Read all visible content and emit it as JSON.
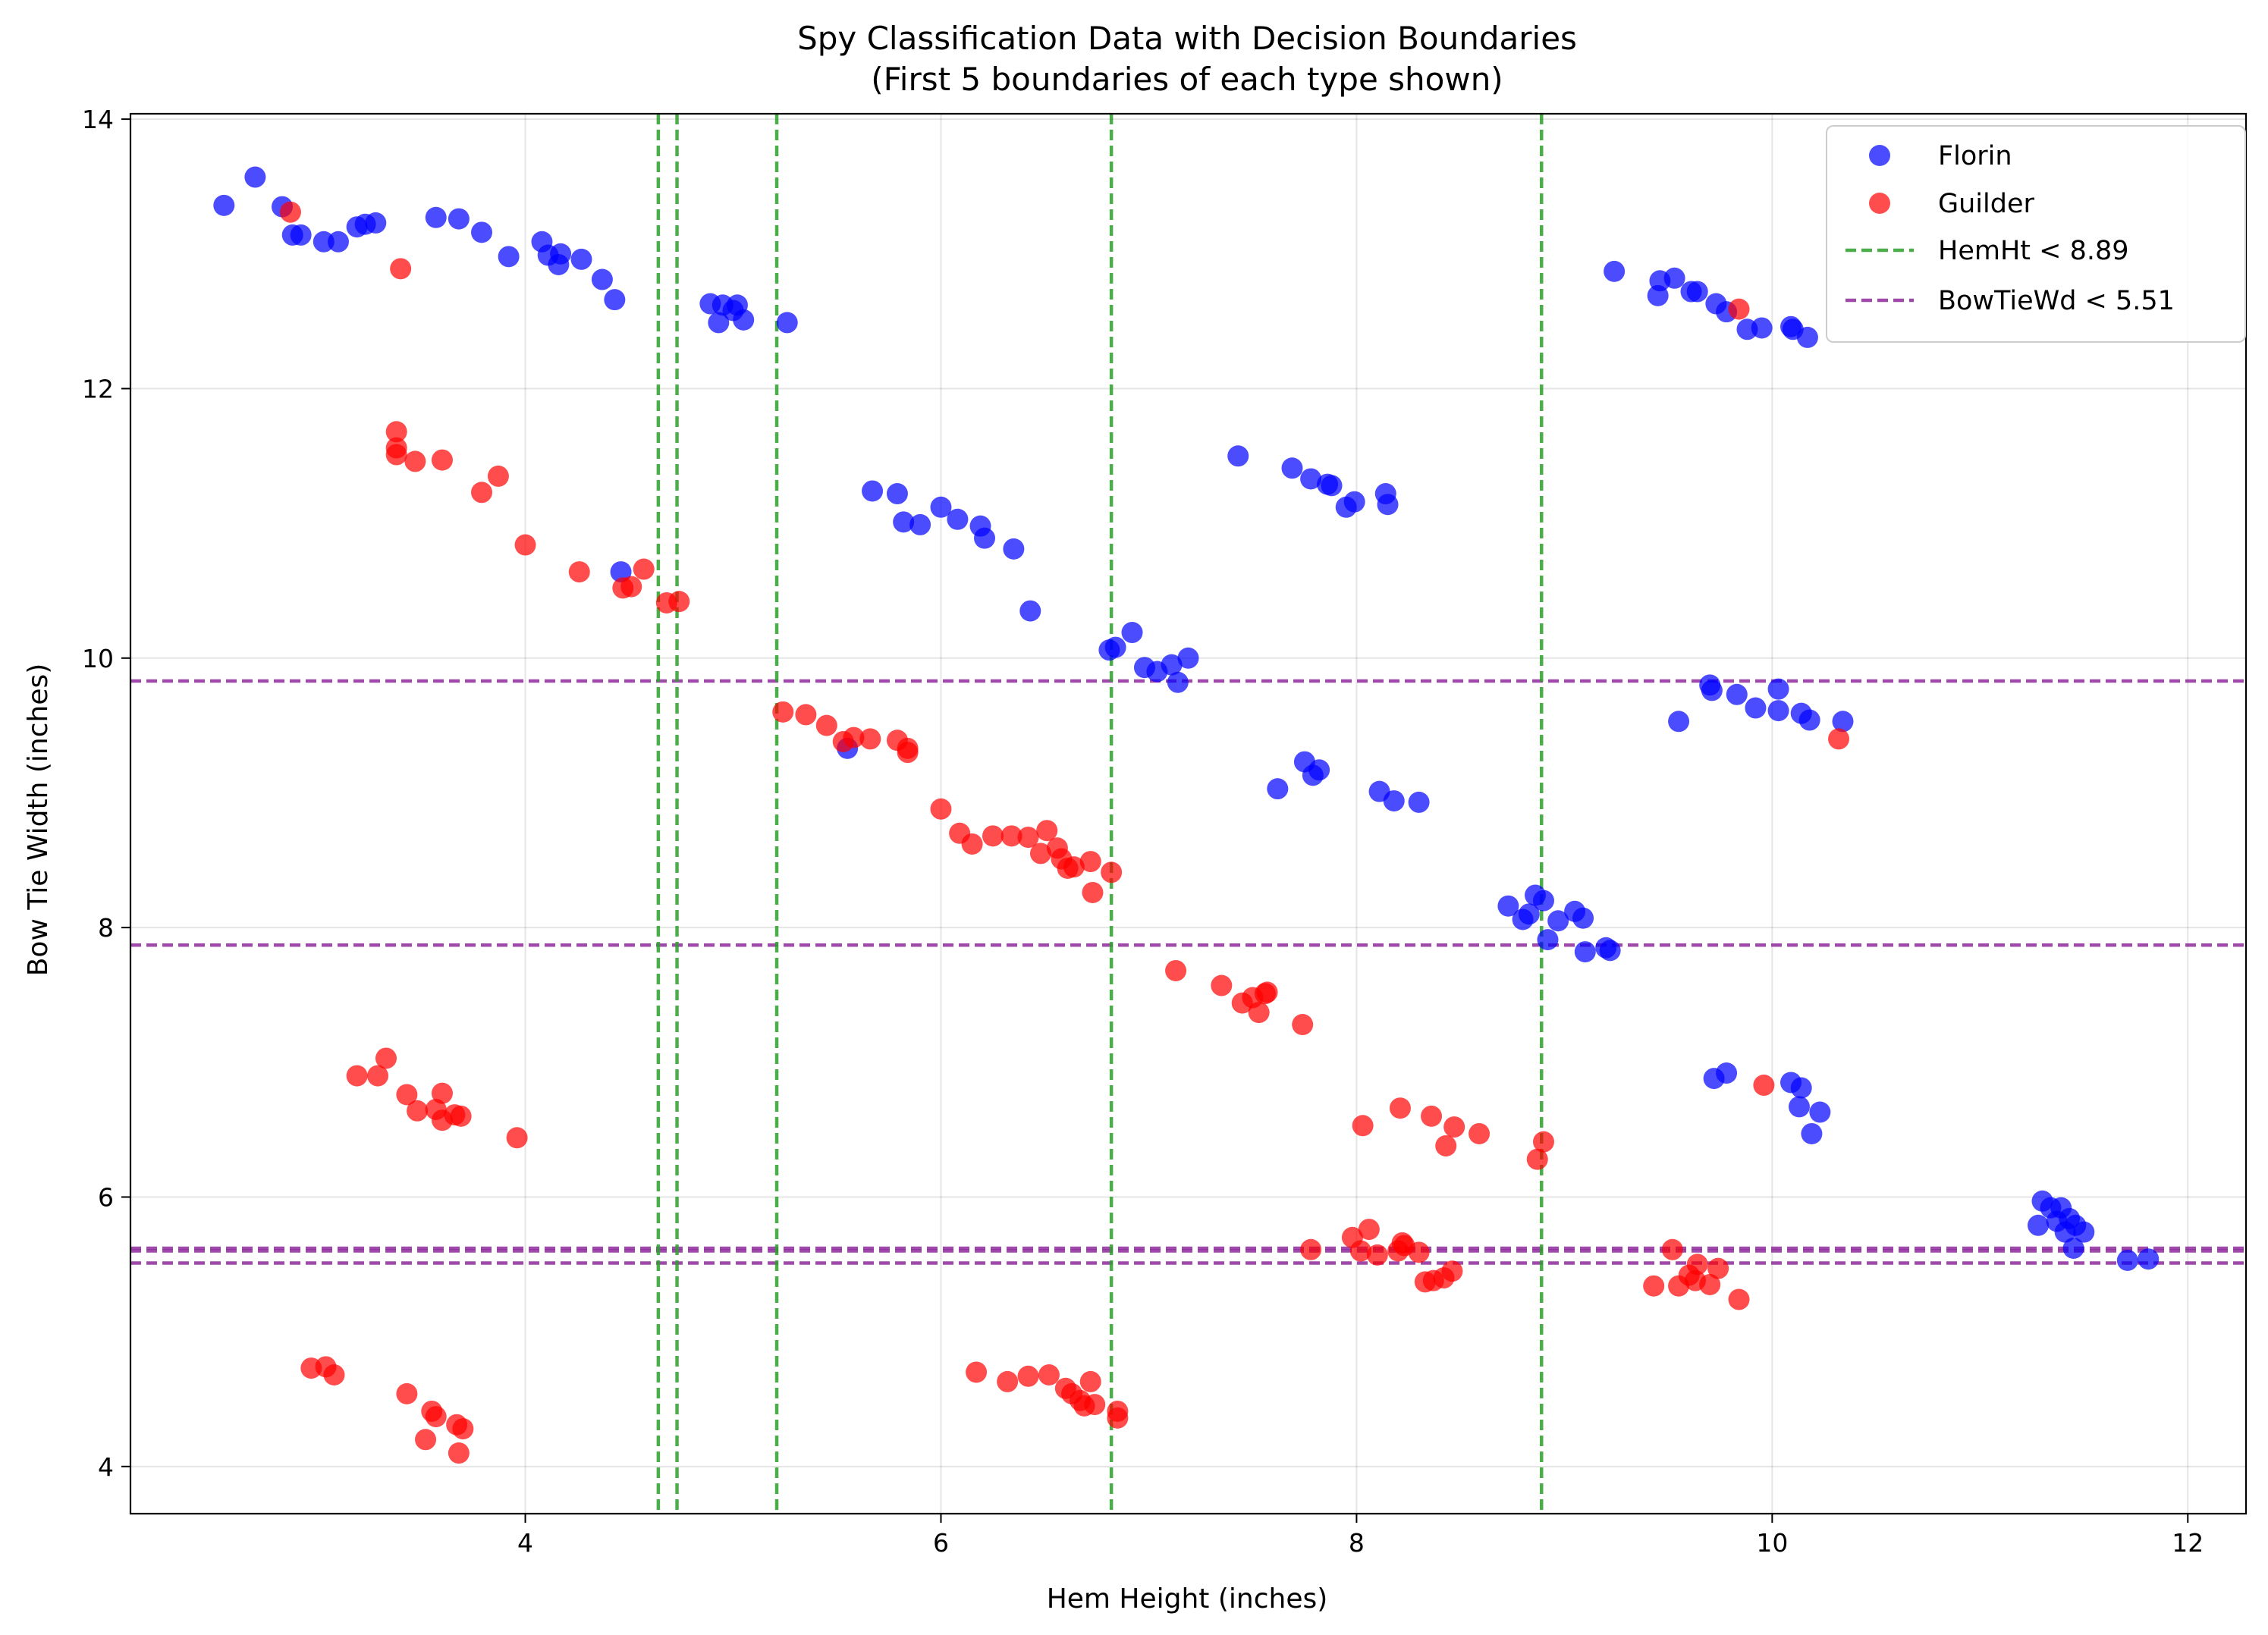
{
  "chart_data": {
    "type": "scatter",
    "title": "Spy Classification Data with Decision Boundaries",
    "subtitle": "(First 5 boundaries of each type shown)",
    "xlabel": "Hem Height (inches)",
    "ylabel": "Bow Tie Width (inches)",
    "xlim": [
      2.1,
      12.28
    ],
    "ylim": [
      3.65,
      14.04
    ],
    "x_ticks": [
      4,
      6,
      8,
      10,
      12
    ],
    "y_ticks": [
      4,
      6,
      8,
      10,
      12,
      14
    ],
    "grid": true,
    "legend_position": "top-right",
    "series": [
      {
        "name": "Florin",
        "color": "#0000ff",
        "points": [
          [
            2.55,
            13.36
          ],
          [
            2.7,
            13.57
          ],
          [
            2.83,
            13.35
          ],
          [
            2.88,
            13.14
          ],
          [
            2.92,
            13.14
          ],
          [
            3.03,
            13.09
          ],
          [
            3.1,
            13.09
          ],
          [
            3.19,
            13.2
          ],
          [
            3.23,
            13.22
          ],
          [
            3.28,
            13.23
          ],
          [
            3.57,
            13.27
          ],
          [
            3.68,
            13.26
          ],
          [
            3.79,
            13.16
          ],
          [
            3.92,
            12.98
          ],
          [
            4.08,
            13.09
          ],
          [
            4.11,
            12.99
          ],
          [
            4.16,
            12.92
          ],
          [
            4.17,
            13.0
          ],
          [
            4.27,
            12.96
          ],
          [
            4.37,
            12.81
          ],
          [
            4.43,
            12.66
          ],
          [
            4.89,
            12.63
          ],
          [
            4.93,
            12.49
          ],
          [
            4.95,
            12.62
          ],
          [
            5.0,
            12.58
          ],
          [
            5.02,
            12.62
          ],
          [
            5.05,
            12.51
          ],
          [
            5.26,
            12.49
          ],
          [
            4.46,
            10.64
          ],
          [
            5.55,
            9.33
          ],
          [
            5.67,
            11.24
          ],
          [
            5.79,
            11.22
          ],
          [
            5.82,
            11.01
          ],
          [
            5.9,
            10.99
          ],
          [
            6.0,
            11.12
          ],
          [
            6.08,
            11.03
          ],
          [
            6.19,
            10.98
          ],
          [
            6.21,
            10.89
          ],
          [
            6.35,
            10.81
          ],
          [
            6.43,
            10.35
          ],
          [
            6.81,
            10.06
          ],
          [
            6.84,
            10.08
          ],
          [
            6.92,
            10.19
          ],
          [
            6.98,
            9.93
          ],
          [
            7.04,
            9.9
          ],
          [
            7.11,
            9.95
          ],
          [
            7.14,
            9.82
          ],
          [
            7.19,
            10.0
          ],
          [
            7.43,
            11.5
          ],
          [
            7.62,
            9.03
          ],
          [
            7.69,
            11.41
          ],
          [
            7.75,
            9.23
          ],
          [
            7.78,
            11.33
          ],
          [
            7.79,
            9.13
          ],
          [
            7.82,
            9.17
          ],
          [
            7.86,
            11.29
          ],
          [
            7.88,
            11.28
          ],
          [
            7.95,
            11.12
          ],
          [
            7.99,
            11.16
          ],
          [
            8.11,
            9.01
          ],
          [
            8.14,
            11.22
          ],
          [
            8.15,
            11.14
          ],
          [
            8.18,
            8.94
          ],
          [
            8.3,
            8.93
          ],
          [
            8.73,
            8.16
          ],
          [
            8.8,
            8.06
          ],
          [
            8.83,
            8.1
          ],
          [
            8.86,
            8.24
          ],
          [
            8.9,
            8.2
          ],
          [
            8.92,
            7.91
          ],
          [
            8.97,
            8.05
          ],
          [
            9.05,
            8.12
          ],
          [
            9.09,
            8.07
          ],
          [
            9.1,
            7.82
          ],
          [
            9.2,
            7.85
          ],
          [
            9.22,
            7.83
          ],
          [
            9.24,
            12.87
          ],
          [
            9.45,
            12.69
          ],
          [
            9.46,
            12.8
          ],
          [
            9.53,
            12.82
          ],
          [
            9.55,
            9.53
          ],
          [
            9.61,
            12.72
          ],
          [
            9.64,
            12.72
          ],
          [
            9.7,
            9.8
          ],
          [
            9.71,
            9.76
          ],
          [
            9.72,
            6.88
          ],
          [
            9.73,
            12.63
          ],
          [
            9.78,
            6.92
          ],
          [
            9.78,
            12.57
          ],
          [
            9.83,
            9.73
          ],
          [
            9.88,
            12.44
          ],
          [
            9.92,
            9.63
          ],
          [
            9.95,
            12.45
          ],
          [
            10.03,
            9.77
          ],
          [
            10.03,
            9.61
          ],
          [
            10.09,
            12.46
          ],
          [
            10.09,
            6.85
          ],
          [
            10.1,
            12.44
          ],
          [
            10.13,
            6.67
          ],
          [
            10.14,
            6.81
          ],
          [
            10.14,
            9.59
          ],
          [
            10.17,
            12.38
          ],
          [
            10.18,
            9.54
          ],
          [
            10.19,
            6.47
          ],
          [
            10.23,
            6.63
          ],
          [
            10.34,
            9.53
          ],
          [
            11.28,
            5.79
          ],
          [
            11.3,
            5.97
          ],
          [
            11.34,
            5.92
          ],
          [
            11.37,
            5.82
          ],
          [
            11.39,
            5.92
          ],
          [
            11.41,
            5.74
          ],
          [
            11.43,
            5.84
          ],
          [
            11.45,
            5.62
          ],
          [
            11.46,
            5.79
          ],
          [
            11.5,
            5.74
          ],
          [
            11.71,
            5.53
          ],
          [
            11.81,
            5.54
          ]
        ]
      },
      {
        "name": "Guilder",
        "color": "#ff0000",
        "points": [
          [
            2.87,
            13.31
          ],
          [
            3.4,
            12.89
          ],
          [
            3.38,
            11.68
          ],
          [
            3.38,
            11.56
          ],
          [
            3.38,
            11.51
          ],
          [
            3.47,
            11.46
          ],
          [
            3.6,
            11.47
          ],
          [
            3.79,
            11.23
          ],
          [
            3.87,
            11.35
          ],
          [
            4.0,
            10.84
          ],
          [
            4.26,
            10.64
          ],
          [
            4.47,
            10.52
          ],
          [
            4.51,
            10.53
          ],
          [
            4.57,
            10.66
          ],
          [
            4.68,
            10.41
          ],
          [
            4.74,
            10.42
          ],
          [
            5.24,
            9.6
          ],
          [
            5.35,
            9.58
          ],
          [
            5.45,
            9.5
          ],
          [
            5.53,
            9.38
          ],
          [
            5.58,
            9.41
          ],
          [
            5.66,
            9.4
          ],
          [
            5.79,
            9.39
          ],
          [
            5.84,
            9.3
          ],
          [
            5.84,
            9.33
          ],
          [
            6.0,
            8.88
          ],
          [
            6.09,
            8.7
          ],
          [
            6.15,
            8.62
          ],
          [
            6.25,
            8.68
          ],
          [
            6.34,
            8.68
          ],
          [
            6.42,
            8.67
          ],
          [
            6.48,
            8.55
          ],
          [
            6.51,
            8.72
          ],
          [
            6.56,
            8.59
          ],
          [
            6.58,
            8.51
          ],
          [
            6.61,
            8.44
          ],
          [
            6.64,
            8.45
          ],
          [
            6.72,
            8.49
          ],
          [
            6.73,
            8.26
          ],
          [
            6.82,
            8.41
          ],
          [
            7.13,
            7.68
          ],
          [
            7.35,
            7.57
          ],
          [
            7.45,
            7.44
          ],
          [
            7.5,
            7.48
          ],
          [
            7.53,
            7.37
          ],
          [
            7.56,
            7.51
          ],
          [
            7.57,
            7.52
          ],
          [
            7.74,
            7.28
          ],
          [
            3.19,
            6.9
          ],
          [
            3.29,
            6.9
          ],
          [
            3.33,
            7.03
          ],
          [
            3.43,
            6.76
          ],
          [
            3.48,
            6.64
          ],
          [
            3.57,
            6.65
          ],
          [
            3.6,
            6.77
          ],
          [
            3.6,
            6.57
          ],
          [
            3.66,
            6.61
          ],
          [
            3.69,
            6.6
          ],
          [
            3.96,
            6.44
          ],
          [
            8.03,
            6.53
          ],
          [
            8.21,
            6.66
          ],
          [
            8.36,
            6.6
          ],
          [
            8.43,
            6.38
          ],
          [
            8.47,
            6.52
          ],
          [
            8.59,
            6.47
          ],
          [
            8.87,
            6.28
          ],
          [
            8.9,
            6.41
          ],
          [
            9.96,
            6.83
          ],
          [
            7.78,
            5.61
          ],
          [
            7.98,
            5.7
          ],
          [
            8.02,
            5.6
          ],
          [
            8.06,
            5.76
          ],
          [
            8.1,
            5.57
          ],
          [
            8.2,
            5.6
          ],
          [
            8.22,
            5.66
          ],
          [
            8.23,
            5.64
          ],
          [
            8.3,
            5.59
          ],
          [
            8.33,
            5.37
          ],
          [
            8.37,
            5.38
          ],
          [
            8.42,
            5.4
          ],
          [
            8.46,
            5.45
          ],
          [
            9.43,
            5.34
          ],
          [
            9.52,
            5.61
          ],
          [
            9.55,
            5.34
          ],
          [
            9.6,
            5.42
          ],
          [
            9.63,
            5.38
          ],
          [
            9.64,
            5.5
          ],
          [
            9.7,
            5.35
          ],
          [
            9.74,
            5.47
          ],
          [
            9.84,
            5.24
          ],
          [
            9.84,
            12.59
          ],
          [
            10.32,
            9.4
          ],
          [
            2.97,
            4.73
          ],
          [
            3.04,
            4.74
          ],
          [
            3.08,
            4.68
          ],
          [
            3.43,
            4.54
          ],
          [
            3.52,
            4.2
          ],
          [
            3.55,
            4.41
          ],
          [
            3.57,
            4.37
          ],
          [
            3.67,
            4.31
          ],
          [
            3.7,
            4.28
          ],
          [
            3.68,
            4.1
          ],
          [
            6.17,
            4.7
          ],
          [
            6.32,
            4.63
          ],
          [
            6.42,
            4.67
          ],
          [
            6.52,
            4.68
          ],
          [
            6.6,
            4.58
          ],
          [
            6.63,
            4.54
          ],
          [
            6.67,
            4.49
          ],
          [
            6.69,
            4.45
          ],
          [
            6.72,
            4.63
          ],
          [
            6.74,
            4.46
          ],
          [
            6.85,
            4.41
          ],
          [
            6.85,
            4.36
          ]
        ]
      }
    ],
    "vertical_boundaries": {
      "name": "HemHt < 8.89",
      "color": "#2ca02c",
      "values": [
        4.64,
        4.73,
        5.21,
        6.82,
        8.89
      ]
    },
    "horizontal_boundaries": {
      "name": "BowTieWd < 5.51",
      "color": "#8e2a9c",
      "values": [
        9.83,
        7.87,
        5.62,
        5.6,
        5.51
      ]
    }
  }
}
